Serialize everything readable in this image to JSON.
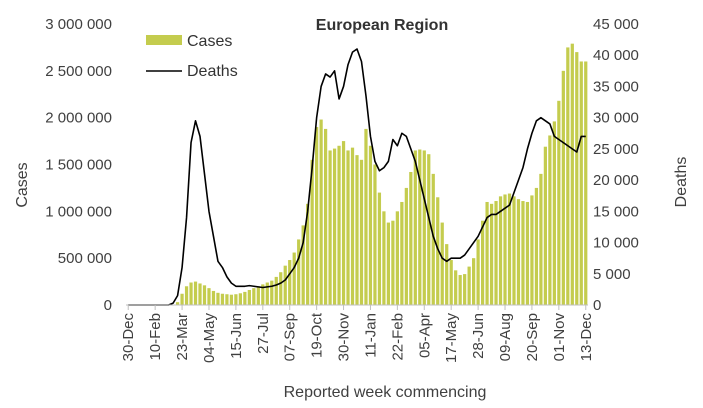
{
  "chart_data": {
    "type": "bar",
    "title": "European Region",
    "xlabel": "Reported week commencing",
    "ylabel": "Cases",
    "y2label": "Deaths",
    "ylim": [
      0,
      3000000
    ],
    "y2lim": [
      0,
      45000
    ],
    "yticks": [
      "0",
      "500 000",
      "1 000 000",
      "1 500 000",
      "2 000 000",
      "2 500 000",
      "3 000 000"
    ],
    "y2ticks": [
      "0",
      "5 000",
      "10 000",
      "15 000",
      "20 000",
      "25 000",
      "30 000",
      "35 000",
      "40 000",
      "45 000"
    ],
    "x_tick_labels": [
      {
        "index": 0,
        "label": "30-Dec"
      },
      {
        "index": 6,
        "label": "10-Feb"
      },
      {
        "index": 12,
        "label": "23-Mar"
      },
      {
        "index": 18,
        "label": "04-May"
      },
      {
        "index": 24,
        "label": "15-Jun"
      },
      {
        "index": 30,
        "label": "27-Jul"
      },
      {
        "index": 36,
        "label": "07-Sep"
      },
      {
        "index": 42,
        "label": "19-Oct"
      },
      {
        "index": 48,
        "label": "30-Nov"
      },
      {
        "index": 54,
        "label": "11-Jan"
      },
      {
        "index": 60,
        "label": "22-Feb"
      },
      {
        "index": 66,
        "label": "05-Apr"
      },
      {
        "index": 72,
        "label": "17-May"
      },
      {
        "index": 78,
        "label": "28-Jun"
      },
      {
        "index": 84,
        "label": "09-Aug"
      },
      {
        "index": 90,
        "label": "20-Sep"
      },
      {
        "index": 96,
        "label": "01-Nov"
      },
      {
        "index": 102,
        "label": "13-Dec"
      }
    ],
    "legend_position": "top-left",
    "colors": {
      "cases": "#c4cc4e",
      "deaths": "#000000",
      "axis_text": "#404040"
    },
    "series": [
      {
        "name": "Cases",
        "type": "bar",
        "axis": "left",
        "values": [
          0,
          0,
          0,
          0,
          0,
          0,
          0,
          0,
          0,
          1000,
          5000,
          30000,
          120000,
          200000,
          240000,
          250000,
          230000,
          210000,
          180000,
          150000,
          130000,
          120000,
          115000,
          110000,
          115000,
          125000,
          140000,
          160000,
          180000,
          200000,
          220000,
          240000,
          260000,
          300000,
          350000,
          420000,
          480000,
          560000,
          700000,
          850000,
          1080000,
          1550000,
          1900000,
          1980000,
          1880000,
          1650000,
          1670000,
          1700000,
          1750000,
          1650000,
          1680000,
          1600000,
          1550000,
          1880000,
          1700000,
          1500000,
          1200000,
          1000000,
          880000,
          900000,
          1000000,
          1100000,
          1250000,
          1420000,
          1650000,
          1660000,
          1650000,
          1610000,
          1400000,
          1150000,
          880000,
          650000,
          480000,
          370000,
          320000,
          330000,
          410000,
          500000,
          700000,
          900000,
          1100000,
          1080000,
          1110000,
          1160000,
          1180000,
          1190000,
          1160000,
          1130000,
          1110000,
          1100000,
          1170000,
          1250000,
          1400000,
          1690000,
          1810000,
          1960000,
          2180000,
          2500000,
          2750000,
          2790000,
          2700000,
          2600000,
          2600000
        ]
      },
      {
        "name": "Deaths",
        "type": "line",
        "axis": "right",
        "values": [
          0,
          0,
          0,
          0,
          0,
          0,
          0,
          0,
          0,
          0,
          300,
          1500,
          6000,
          14000,
          26000,
          29500,
          27000,
          21000,
          15000,
          11000,
          7000,
          6000,
          4500,
          3500,
          3000,
          3000,
          3000,
          3100,
          3000,
          2900,
          2800,
          2900,
          3000,
          3200,
          3500,
          4000,
          5000,
          6000,
          7500,
          10000,
          15000,
          22000,
          30000,
          35000,
          37000,
          36500,
          37500,
          33000,
          35000,
          38500,
          40500,
          41000,
          39000,
          33500,
          27000,
          23000,
          21500,
          22000,
          23000,
          26500,
          25500,
          27500,
          27000,
          25000,
          23000,
          20000,
          17000,
          14000,
          11000,
          9000,
          7500,
          7000,
          7500,
          7500,
          7500,
          8000,
          9000,
          10000,
          11000,
          12500,
          14000,
          14500,
          14500,
          15000,
          15500,
          16000,
          18000,
          20000,
          22000,
          25000,
          27500,
          29500,
          30000,
          29500,
          29000,
          27000,
          26500,
          26000,
          25500,
          25000,
          24500,
          27000,
          27000
        ]
      }
    ]
  }
}
